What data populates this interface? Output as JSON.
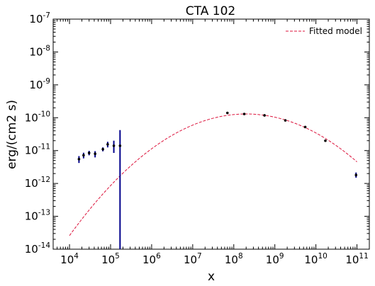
{
  "chart_data": {
    "type": "scatter",
    "title": "CTA 102",
    "xlabel": "x",
    "ylabel": "erg/(cm2 s)",
    "xscale": "log",
    "yscale": "log",
    "xlim": [
      4000,
      200000000000
    ],
    "ylim": [
      1e-14,
      1e-07
    ],
    "x_tick_labels": [
      "10^4",
      "10^5",
      "10^6",
      "10^7",
      "10^8",
      "10^9",
      "10^10",
      "10^11"
    ],
    "y_tick_labels": [
      "10^-14",
      "10^-13",
      "10^-12",
      "10^-11",
      "10^-10",
      "10^-9",
      "10^-8",
      "10^-7"
    ],
    "grid": false,
    "legend_position": "top-right",
    "colors": {
      "points": "#00008b",
      "model": "#dc143c"
    },
    "series": [
      {
        "points": [
          {
            "x": 17000,
            "y": 5.5e-12,
            "ylo": 4.2e-12,
            "yhi": 6.8e-12
          },
          {
            "x": 22000,
            "y": 7.2e-12,
            "ylo": 5.8e-12,
            "yhi": 8.6e-12
          },
          {
            "x": 30000,
            "y": 8.5e-12,
            "ylo": 7.2e-12,
            "yhi": 9.8e-12
          },
          {
            "x": 42000,
            "y": 8e-12,
            "ylo": 6.2e-12,
            "yhi": 9.6e-12
          },
          {
            "x": 65000,
            "y": 1.1e-11,
            "ylo": 9.5e-12,
            "yhi": 1.25e-11
          },
          {
            "x": 85000,
            "y": 1.55e-11,
            "ylo": 1.25e-11,
            "yhi": 1.85e-11
          },
          {
            "x": 120000,
            "y": 1.4e-11,
            "ylo": 8.5e-12,
            "yhi": 2e-11
          },
          {
            "x": 170000,
            "y": 1.4e-11,
            "ylo": 1e-14,
            "yhi": 4.2e-11
          },
          {
            "x": 70000000,
            "y": 1.4e-10,
            "ylo": 1.32e-10,
            "yhi": 1.48e-10
          },
          {
            "x": 180000000,
            "y": 1.3e-10,
            "ylo": 1.26e-10,
            "yhi": 1.34e-10
          },
          {
            "x": 560000000,
            "y": 1.18e-10,
            "ylo": 1.14e-10,
            "yhi": 1.22e-10
          },
          {
            "x": 1800000000,
            "y": 8.3e-11,
            "ylo": 8e-11,
            "yhi": 8.6e-11
          },
          {
            "x": 5500000000,
            "y": 5.2e-11,
            "ylo": 5e-11,
            "yhi": 5.4e-11
          },
          {
            "x": 17000000000,
            "y": 2e-11,
            "ylo": 1.9e-11,
            "yhi": 2.1e-11
          },
          {
            "x": 95000000000,
            "y": 1.8e-12,
            "ylo": 1.5e-12,
            "yhi": 2.15e-12
          }
        ]
      },
      {
        "name": "Fitted model",
        "style": "dashed",
        "model": {
          "peak_x": 200000000,
          "peak_y": 1.3e-10,
          "curvature": 0.2
        },
        "x_range": [
          10000,
          100000000000
        ]
      }
    ]
  }
}
